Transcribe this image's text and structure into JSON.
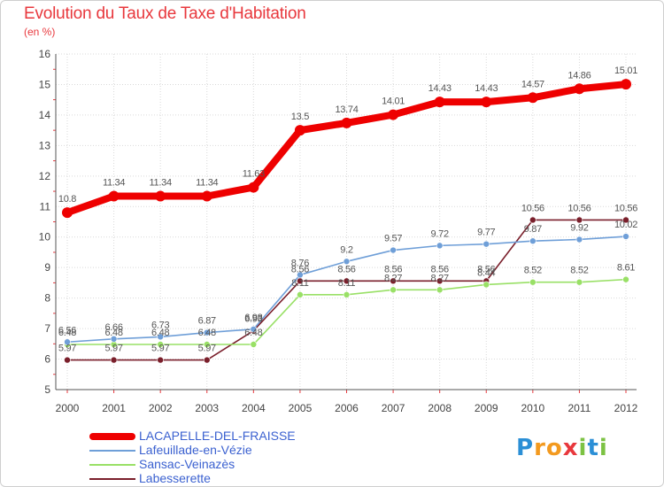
{
  "chart_data": {
    "type": "line",
    "title": "Evolution du Taux de Taxe d'Habitation",
    "subtitle": "(en %)",
    "xlabel": "",
    "ylabel": "",
    "ylim": [
      5,
      16
    ],
    "yticks": [
      "5",
      "6",
      "7",
      "8",
      "9",
      "10",
      "11",
      "12",
      "13",
      "14",
      "15",
      "16"
    ],
    "x": [
      "2000",
      "2001",
      "2002",
      "2003",
      "2004",
      "2005",
      "2006",
      "2007",
      "2008",
      "2009",
      "2010",
      "2011",
      "2012"
    ],
    "grid": true,
    "legend_position": "bottom-left",
    "series": [
      {
        "name": "LACAPELLE-DEL-FRAISSE",
        "color": "#ee0000",
        "values": [
          10.8,
          11.34,
          11.34,
          11.34,
          11.63,
          13.5,
          13.74,
          14.01,
          14.43,
          14.43,
          14.57,
          14.86,
          15.01
        ],
        "labels": [
          "10.8",
          "11.34",
          "11.34",
          "11.34",
          "11.63",
          "13.5",
          "13.74",
          "14.01",
          "14.43",
          "14.43",
          "14.57",
          "14.86",
          "15.01"
        ]
      },
      {
        "name": "Lafeuillade-en-Vézie",
        "color": "#6f9fd8",
        "values": [
          6.56,
          6.66,
          6.73,
          6.87,
          6.98,
          8.76,
          9.2,
          9.57,
          9.72,
          9.77,
          9.87,
          9.92,
          10.02
        ],
        "labels": [
          "6.56",
          "6.66",
          "6.73",
          "6.87",
          "6.98",
          "8.76",
          "9.2",
          "9.57",
          "9.72",
          "9.77",
          "9.87",
          "9.92",
          "10.02"
        ]
      },
      {
        "name": "Sansac-Veinazès",
        "color": "#99e066",
        "values": [
          6.48,
          6.48,
          6.48,
          6.48,
          6.48,
          8.11,
          8.11,
          8.27,
          8.27,
          8.44,
          8.52,
          8.52,
          8.61
        ],
        "labels": [
          "6.48",
          "6.48",
          "6.48",
          "6.48",
          "6.48",
          "8.11",
          "8.11",
          "8.27",
          "8.27",
          "8.44",
          "8.52",
          "8.52",
          "8.61"
        ]
      },
      {
        "name": "Labesserette",
        "color": "#7a1f2b",
        "values": [
          5.97,
          5.97,
          5.97,
          5.97,
          6.93,
          8.56,
          8.56,
          8.56,
          8.56,
          8.56,
          10.56,
          10.56,
          10.56
        ],
        "labels": [
          "5.97",
          "5.97",
          "5.97",
          "5.97",
          "6.93",
          "8.56",
          "8.56",
          "8.56",
          "8.56",
          "8.56",
          "10.56",
          "10.56",
          "10.56"
        ]
      }
    ]
  },
  "logo": {
    "letters": [
      {
        "char": "P",
        "color": "#2b8fd6"
      },
      {
        "char": "r",
        "color": "#f39a1f"
      },
      {
        "char": "o",
        "color": "#f39a1f"
      },
      {
        "char": "x",
        "color": "#e8383d"
      },
      {
        "char": "i",
        "color": "#7cc243"
      },
      {
        "char": "t",
        "color": "#2b8fd6"
      },
      {
        "char": "i",
        "color": "#7cc243"
      }
    ]
  }
}
